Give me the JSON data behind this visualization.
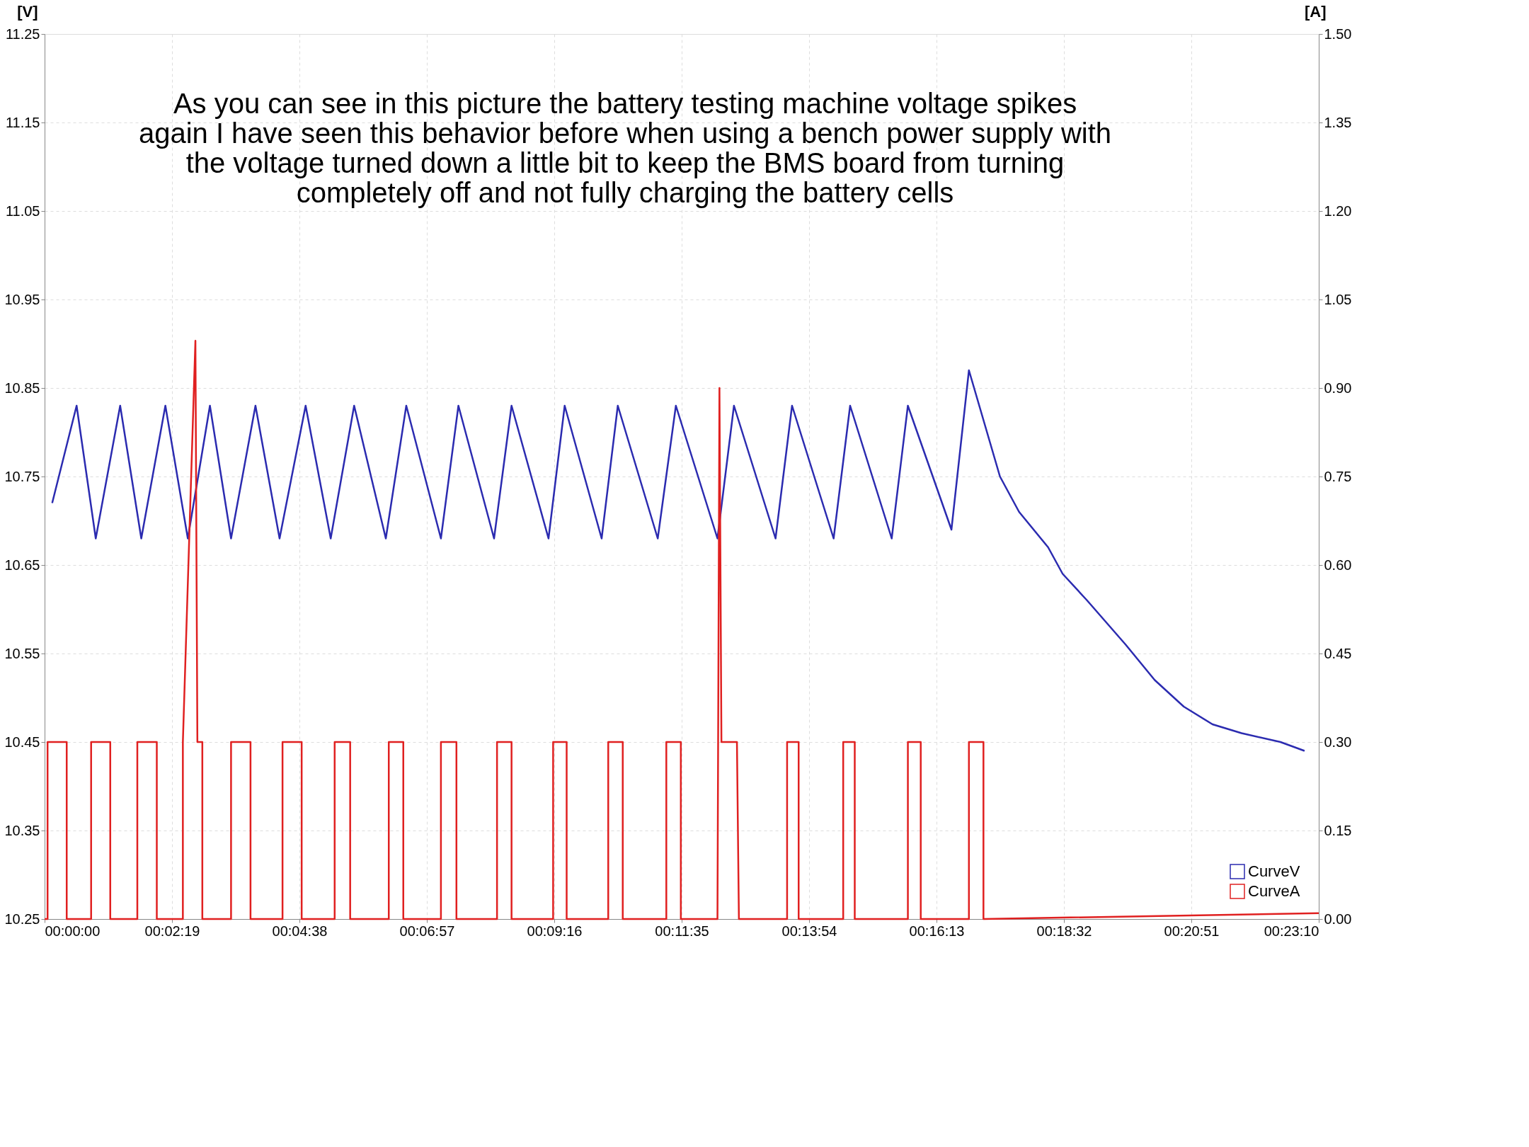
{
  "chart_data": {
    "type": "line",
    "ylabel": "[V]",
    "y2label": "[A]",
    "xlim": [
      0,
      0.38611
    ],
    "ylim": [
      10.25,
      11.25
    ],
    "y2lim": [
      0,
      1.5
    ],
    "xticks": [
      {
        "value": 0,
        "label": "00:00:00"
      },
      {
        "value": 0.03861,
        "label": "00:02:19"
      },
      {
        "value": 0.07722,
        "label": "00:04:38"
      },
      {
        "value": 0.11583,
        "label": "00:06:57"
      },
      {
        "value": 0.15444,
        "label": "00:09:16"
      },
      {
        "value": 0.19306,
        "label": "00:11:35"
      },
      {
        "value": 0.23167,
        "label": "00:13:54"
      },
      {
        "value": 0.27028,
        "label": "00:16:13"
      },
      {
        "value": 0.30889,
        "label": "00:18:32"
      },
      {
        "value": 0.3475,
        "label": "00:20:51"
      },
      {
        "value": 0.38611,
        "label": "00:23:10"
      }
    ],
    "yticks": [
      10.25,
      10.35,
      10.45,
      10.55,
      10.65,
      10.75,
      10.85,
      10.95,
      11.05,
      11.15,
      11.25
    ],
    "y2ticks": [
      {
        "value": 0,
        "label": "0.00"
      },
      0.15,
      {
        "value": 0.3,
        "label": "0.30"
      },
      0.45,
      {
        "value": 0.6,
        "label": "0.60"
      },
      0.75,
      {
        "value": 0.9,
        "label": "0.90"
      },
      1.05,
      {
        "value": 1.2,
        "label": "1.20"
      },
      1.35,
      {
        "value": 1.5,
        "label": "1.50"
      }
    ],
    "grid": true,
    "legend": "bottom right",
    "series": [
      {
        "name": "CurveV",
        "color": "#2b2bb0",
        "x": [
          0.0023,
          0.0097,
          0.0155,
          0.0229,
          0.0293,
          0.0366,
          0.0434,
          0.0501,
          0.0565,
          0.0639,
          0.0712,
          0.0791,
          0.0867,
          0.0938,
          0.1034,
          0.1096,
          0.1201,
          0.1254,
          0.1362,
          0.1415,
          0.1527,
          0.1576,
          0.1688,
          0.1737,
          0.1858,
          0.1913,
          0.2039,
          0.2089,
          0.2215,
          0.2265,
          0.2391,
          0.2441,
          0.2567,
          0.2616,
          0.2748,
          0.2801,
          0.2895,
          0.2953,
          0.3041,
          0.3085,
          0.3159,
          0.3276,
          0.3364,
          0.3452,
          0.3539,
          0.3627,
          0.3745,
          0.3818
        ],
        "values": [
          10.72,
          10.83,
          10.68,
          10.83,
          10.68,
          10.83,
          10.68,
          10.83,
          10.68,
          10.83,
          10.68,
          10.83,
          10.68,
          10.83,
          10.68,
          10.83,
          10.68,
          10.83,
          10.68,
          10.83,
          10.68,
          10.83,
          10.68,
          10.83,
          10.68,
          10.83,
          10.68,
          10.83,
          10.68,
          10.83,
          10.68,
          10.83,
          10.68,
          10.83,
          10.69,
          10.87,
          10.75,
          10.71,
          10.67,
          10.64,
          10.61,
          10.56,
          10.52,
          10.49,
          10.47,
          10.46,
          10.45,
          10.44
        ]
      },
      {
        "name": "CurveA",
        "color": "#e02020",
        "axis": "y2",
        "x": [
          0,
          0.0009,
          0.0009,
          0.0067,
          0.0067,
          0.0141,
          0.0141,
          0.0199,
          0.0199,
          0.0281,
          0.0281,
          0.034,
          0.034,
          0.0419,
          0.0419,
          0.0457,
          0.0463,
          0.0478,
          0.0478,
          0.0565,
          0.0565,
          0.0624,
          0.0624,
          0.0721,
          0.0721,
          0.0779,
          0.0779,
          0.0879,
          0.0879,
          0.0926,
          0.0926,
          0.1043,
          0.1043,
          0.1087,
          0.1087,
          0.1201,
          0.1201,
          0.1248,
          0.1248,
          0.1371,
          0.1371,
          0.1415,
          0.1415,
          0.1541,
          0.1541,
          0.1582,
          0.1582,
          0.1708,
          0.1708,
          0.1752,
          0.1752,
          0.1884,
          0.1884,
          0.1928,
          0.1928,
          0.2039,
          0.2045,
          0.2051,
          0.2098,
          0.2104,
          0.225,
          0.225,
          0.2285,
          0.2285,
          0.242,
          0.242,
          0.2455,
          0.2455,
          0.2616,
          0.2616,
          0.2655,
          0.2655,
          0.2801,
          0.2801,
          0.2845,
          0.2845,
          0.3861
        ],
        "values": [
          0,
          0,
          0.3,
          0.3,
          0,
          0,
          0.3,
          0.3,
          0,
          0,
          0.3,
          0.3,
          0,
          0,
          0.3,
          0.98,
          0.3,
          0.3,
          0,
          0,
          0.3,
          0.3,
          0,
          0,
          0.3,
          0.3,
          0,
          0,
          0.3,
          0.3,
          0,
          0,
          0.3,
          0.3,
          0,
          0,
          0.3,
          0.3,
          0,
          0,
          0.3,
          0.3,
          0,
          0,
          0.3,
          0.3,
          0,
          0,
          0.3,
          0.3,
          0,
          0,
          0.3,
          0.3,
          0,
          0,
          0.9,
          0.3,
          0.3,
          0,
          0,
          0.3,
          0.3,
          0,
          0,
          0.3,
          0.3,
          0,
          0,
          0.3,
          0.3,
          0,
          0,
          0.3,
          0.3,
          0,
          0.01
        ]
      }
    ],
    "annotations": [
      "As you can see in this picture the battery testing machine voltage spikes again I have seen this behavior before when using a bench power supply with the voltage turned down a little bit to keep the BMS board from turning completely off and not fully charging the battery cells"
    ]
  }
}
